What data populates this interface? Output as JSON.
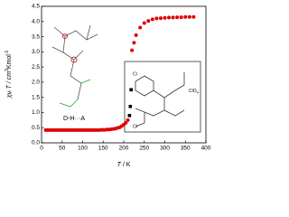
{
  "chart_data": {
    "type": "scatter",
    "x_label": [
      "T",
      " / K"
    ],
    "y_label": [
      "χ",
      "M",
      " T / cm",
      "3",
      "Kmol",
      "-1"
    ],
    "annotations": [
      "D-H···A",
      "Cl",
      "Cl",
      "ClO",
      "4"
    ],
    "xlim": [
      0,
      400
    ],
    "xticks": [
      0,
      50,
      100,
      150,
      200,
      250,
      300,
      350,
      400
    ],
    "ylim": [
      0,
      4.5
    ],
    "yticks": [
      {
        "value": 0,
        "label": "0.0"
      },
      0.5,
      {
        "value": 1,
        "label": "1.0"
      },
      1.5,
      {
        "value": 2,
        "label": "2.0"
      },
      2.5,
      {
        "value": 3,
        "label": "3.0"
      },
      3.5,
      {
        "value": 4,
        "label": "4.0"
      },
      4.5
    ],
    "series": [
      {
        "color": "#e00000",
        "marker": "circle",
        "x": [
          10,
          15,
          20,
          25,
          30,
          35,
          40,
          45,
          50,
          55,
          60,
          65,
          70,
          75,
          80,
          85,
          90,
          95,
          100,
          105,
          110,
          115,
          120,
          125,
          130,
          135,
          140,
          145,
          150,
          155,
          160,
          165,
          170,
          175,
          180,
          185,
          190,
          195,
          200,
          205,
          210,
          220,
          225,
          230,
          240,
          250,
          260,
          270,
          280,
          290,
          300,
          310,
          320,
          330,
          340,
          350,
          360,
          370
        ],
        "values": [
          0.42,
          0.42,
          0.42,
          0.42,
          0.42,
          0.42,
          0.42,
          0.42,
          0.42,
          0.42,
          0.42,
          0.42,
          0.42,
          0.42,
          0.42,
          0.42,
          0.42,
          0.42,
          0.42,
          0.42,
          0.42,
          0.42,
          0.42,
          0.42,
          0.42,
          0.42,
          0.42,
          0.43,
          0.43,
          0.43,
          0.44,
          0.44,
          0.45,
          0.46,
          0.47,
          0.49,
          0.51,
          0.55,
          0.6,
          0.66,
          0.75,
          3.05,
          3.3,
          3.55,
          3.8,
          3.95,
          4.02,
          4.07,
          4.1,
          4.11,
          4.12,
          4.13,
          4.13,
          4.14,
          4.14,
          4.15,
          4.15,
          4.15
        ]
      },
      {
        "color": "#000000",
        "marker": "square",
        "x": [
          214,
          216,
          218
        ],
        "values": [
          0.9,
          1.2,
          1.75
        ]
      }
    ]
  }
}
